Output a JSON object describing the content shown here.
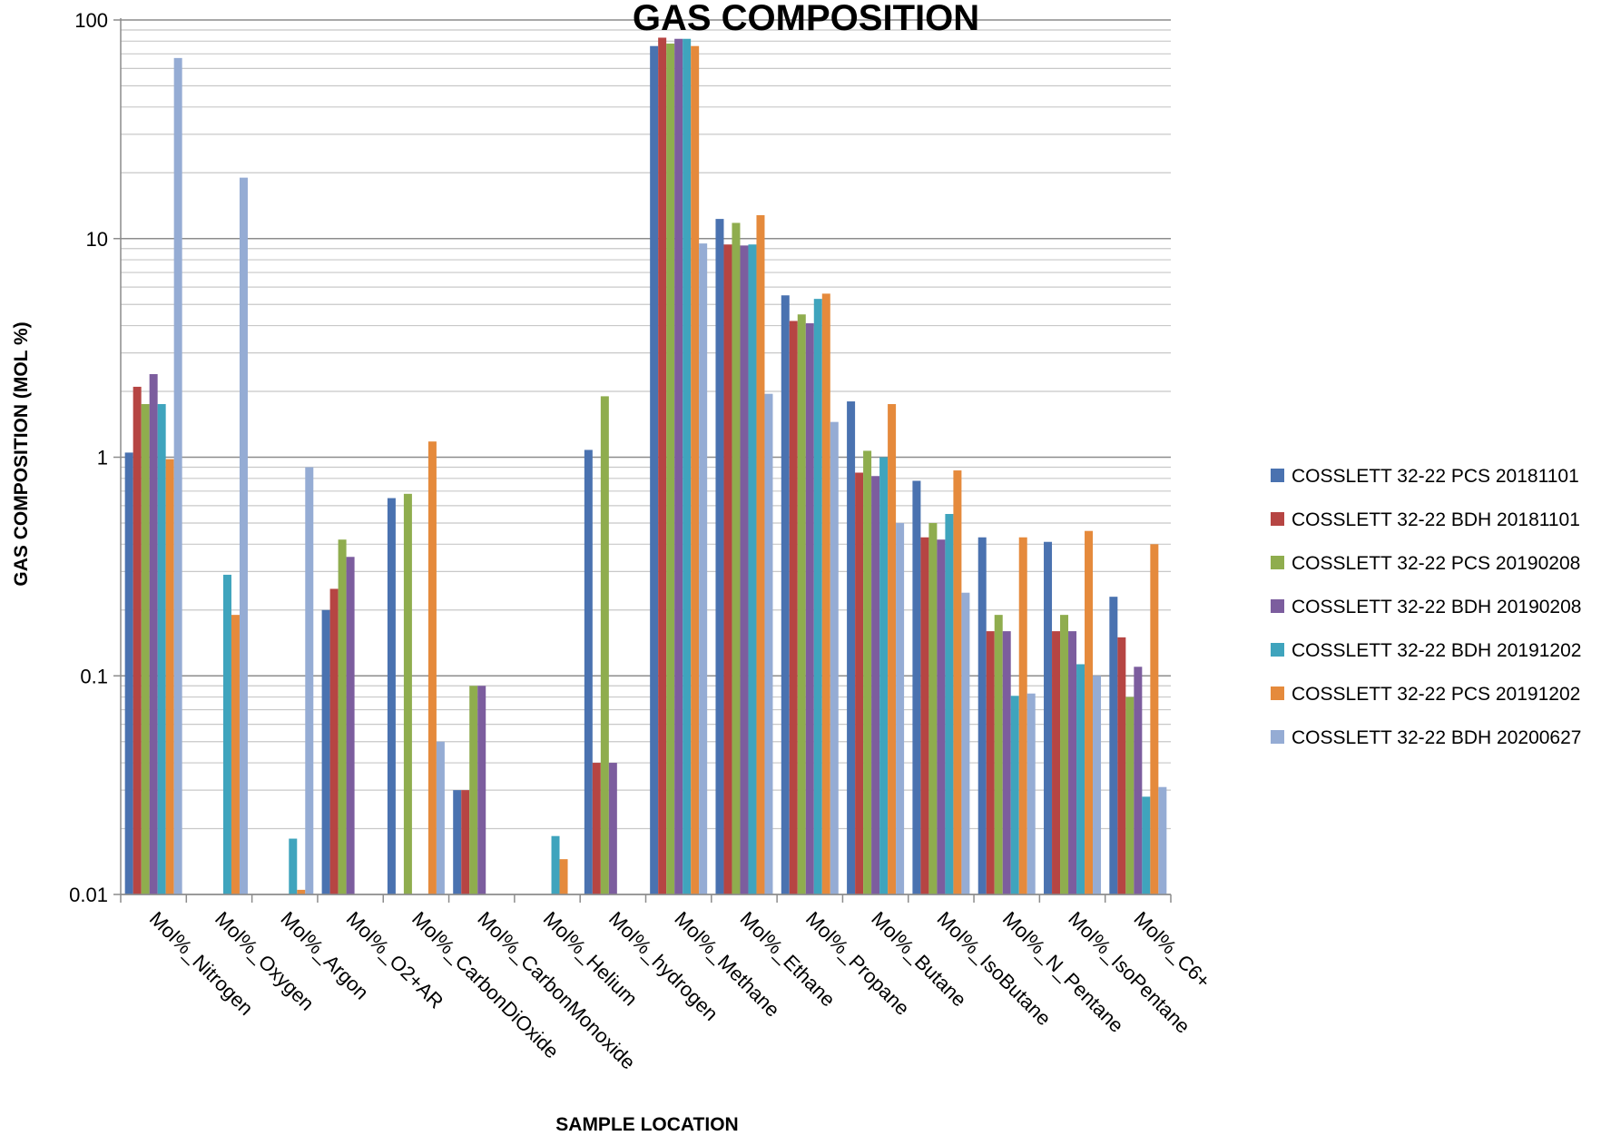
{
  "chart_data": {
    "type": "bar",
    "title": "GAS COMPOSITION",
    "xlabel": "SAMPLE LOCATION",
    "ylabel": "GAS COMPOSITION (MOL %)",
    "yscale": "log",
    "ylim": [
      0.01,
      100
    ],
    "ytick_labels": [
      "100",
      "10",
      "1",
      "0.1",
      "0.01"
    ],
    "grid": "horizontal major and minor",
    "legend_position": "right",
    "categories": [
      "Mol%_Nitrogen",
      "Mol%_Oxygen",
      "Mol%_Argon",
      "Mol%_O2+AR",
      "Mol%_CarbonDiOxide",
      "Mol%_CarbonMonoxide",
      "Mol%_Helium",
      "Mol%_hydrogen",
      "Mol%_Methane",
      "Mol%_Ethane",
      "Mol%_Propane",
      "Mol%_Butane",
      "Mol%_IsoButane",
      "Mol%_N_Pentane",
      "Mol%_IsoPentane",
      "Mol%_C6+"
    ],
    "series": [
      {
        "name": "COSSLETT 32-22 PCS 20181101",
        "color": "#4a72b0",
        "values": [
          1.05,
          null,
          null,
          0.2,
          0.65,
          0.03,
          null,
          1.08,
          76,
          12.3,
          5.5,
          1.8,
          0.78,
          0.43,
          0.41,
          0.23
        ]
      },
      {
        "name": "COSSLETT 32-22 BDH 20181101",
        "color": "#b64543",
        "values": [
          2.1,
          null,
          null,
          0.25,
          null,
          0.03,
          null,
          0.04,
          83,
          9.4,
          4.2,
          0.85,
          0.43,
          0.16,
          0.16,
          0.15
        ]
      },
      {
        "name": "COSSLETT 32-22 PCS 20190208",
        "color": "#8fad4e",
        "values": [
          1.75,
          null,
          null,
          0.42,
          0.68,
          0.09,
          null,
          1.9,
          78,
          11.8,
          4.5,
          1.07,
          0.5,
          0.19,
          0.19,
          0.08
        ]
      },
      {
        "name": "COSSLETT 32-22 BDH 20190208",
        "color": "#7c5d9e",
        "values": [
          2.4,
          null,
          null,
          0.35,
          null,
          0.09,
          null,
          0.04,
          82,
          9.3,
          4.1,
          0.82,
          0.42,
          0.16,
          0.16,
          0.11
        ]
      },
      {
        "name": "COSSLETT 32-22 BDH 20191202",
        "color": "#3fa4bd",
        "values": [
          1.75,
          0.29,
          0.018,
          null,
          null,
          null,
          0.0185,
          null,
          82,
          9.4,
          5.3,
          1.0,
          0.55,
          0.081,
          0.113,
          0.028
        ]
      },
      {
        "name": "COSSLETT 32-22 PCS 20191202",
        "color": "#e58a3c",
        "values": [
          0.98,
          0.19,
          0.0105,
          null,
          1.18,
          null,
          0.0145,
          null,
          76,
          12.8,
          5.6,
          1.75,
          0.87,
          0.43,
          0.46,
          0.4
        ]
      },
      {
        "name": "COSSLETT 32-22 BDH 20200627",
        "color": "#95acd4",
        "values": [
          67,
          19,
          0.9,
          null,
          0.05,
          null,
          null,
          null,
          9.5,
          1.95,
          1.45,
          0.5,
          0.24,
          0.083,
          0.1,
          0.031
        ]
      }
    ]
  }
}
